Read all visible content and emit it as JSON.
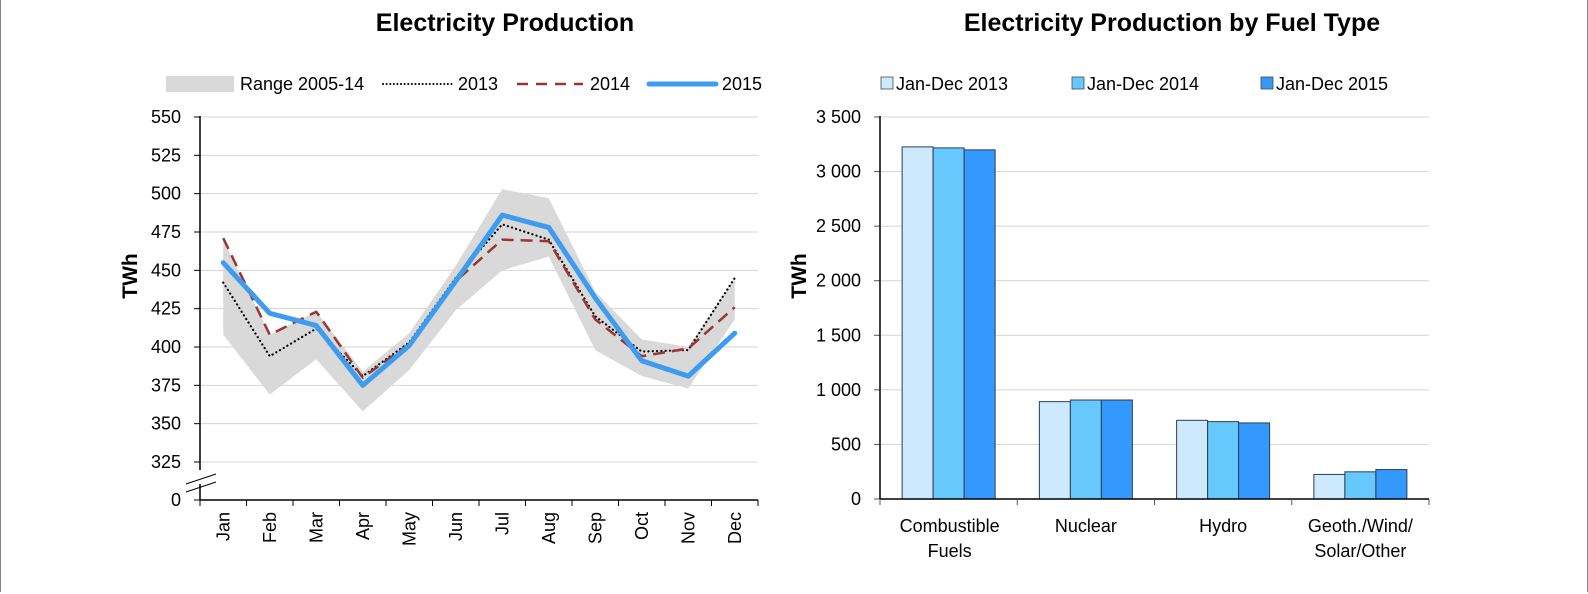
{
  "chart_data": [
    {
      "type": "line",
      "title": "Electricity Production",
      "xlabel": "",
      "ylabel": "TWh",
      "ylim": [
        325,
        550
      ],
      "y_break": true,
      "y_break_bottom_label": "0",
      "yticks": [
        550,
        525,
        500,
        475,
        450,
        425,
        400,
        375,
        350,
        325
      ],
      "grid": true,
      "legend_position": "top",
      "categories": [
        "Jan",
        "Feb",
        "Mar",
        "Apr",
        "May",
        "Jun",
        "Jul",
        "Aug",
        "Sep",
        "Oct",
        "Nov",
        "Dec"
      ],
      "range": {
        "name": "Range 2005-14",
        "color": "#d9d9d9",
        "low": [
          408,
          369,
          392,
          358,
          385,
          424,
          450,
          459,
          398,
          381,
          373,
          418
        ],
        "high": [
          470,
          408,
          423,
          384,
          409,
          453,
          503,
          497,
          436,
          405,
          400,
          445
        ]
      },
      "series": [
        {
          "name": "2013",
          "style": "dotted",
          "color": "#000000",
          "values": [
            442,
            394,
            412,
            381,
            403,
            445,
            480,
            470,
            420,
            397,
            398,
            445
          ]
        },
        {
          "name": "2014",
          "style": "dashed",
          "color": "#9b3535",
          "values": [
            471,
            408,
            423,
            380,
            402,
            443,
            470,
            469,
            418,
            394,
            399,
            426
          ]
        },
        {
          "name": "2015",
          "style": "solid",
          "color": "#3d9cf0",
          "values": [
            455,
            422,
            414,
            375,
            401,
            443,
            486,
            478,
            432,
            391,
            381,
            409
          ]
        }
      ]
    },
    {
      "type": "bar",
      "title": "Electricity Production by Fuel Type",
      "xlabel": "",
      "ylabel": "TWh",
      "ylim": [
        0,
        3500
      ],
      "yticks": [
        "0",
        "500",
        "1 000",
        "1 500",
        "2 000",
        "2 500",
        "3 000",
        "3 500"
      ],
      "ytick_values": [
        0,
        500,
        1000,
        1500,
        2000,
        2500,
        3000,
        3500
      ],
      "grid": true,
      "legend_position": "top",
      "categories": [
        [
          "Combustible",
          "Fuels"
        ],
        [
          "Nuclear"
        ],
        [
          "Hydro"
        ],
        [
          "Geoth./Wind/",
          "Solar/Other"
        ]
      ],
      "series": [
        {
          "name": "Jan-Dec 2013",
          "color": "#cce9fd",
          "values": [
            3226,
            892,
            721,
            225
          ]
        },
        {
          "name": "Jan-Dec 2014",
          "color": "#66c8fd",
          "values": [
            3217,
            907,
            709,
            249
          ]
        },
        {
          "name": "Jan-Dec 2015",
          "color": "#3399fe",
          "values": [
            3199,
            907,
            697,
            270
          ]
        }
      ]
    }
  ]
}
